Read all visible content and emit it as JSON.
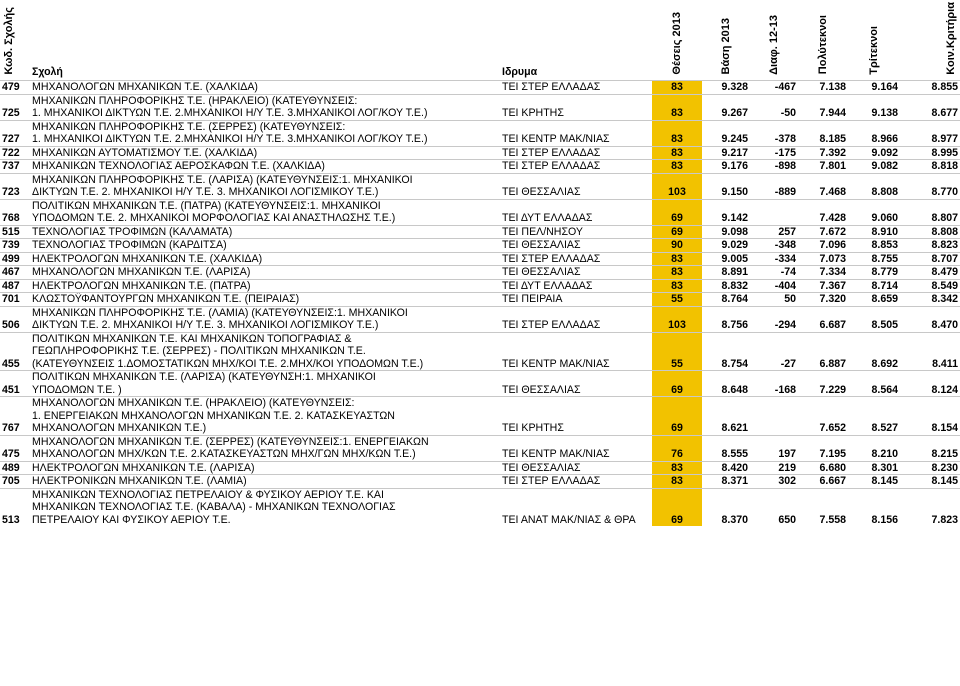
{
  "headers": {
    "code": "Κωδ. Σχολής",
    "school": "Σχολή",
    "institution": "Ιδρυμα",
    "positions": "Θέσεις 2013",
    "base": "Βάση 2013",
    "diff": "Διαφ. 12-13",
    "polyteknoi": "Πολύτεκνοι",
    "triteknoi": "Τρίτεκνοι",
    "koinkrit": "Κοιν.Κριτήρια"
  },
  "rows": [
    {
      "code": "479",
      "school": "ΜΗΧΑΝΟΛΟΓΩΝ ΜΗΧΑΝΙΚΩΝ Τ.Ε. (ΧΑΛΚΙΔΑ)",
      "institution": "ΤΕΙ ΣΤΕΡ ΕΛΛΑΔΑΣ",
      "positions": "83",
      "base": "9.328",
      "diff": "-467",
      "poly": "7.138",
      "tri": "9.164",
      "koin": "8.855"
    },
    {
      "code": "725",
      "school": "ΜΗΧΑΝΙΚΩΝ ΠΛΗΡΟΦΟΡΙΚΗΣ Τ.Ε. (ΗΡΑΚΛΕΙΟ) (ΚΑΤΕΥΘΥΝΣΕΙΣ:\n1. ΜΗΧΑΝΙΚΟΙ ΔΙΚΤΥΩΝ Τ.Ε. 2.ΜΗΧΑΝΙΚΟΙ Η/Υ Τ.Ε. 3.ΜΗΧΑΝΙΚΟΙ ΛΟΓ/ΚΟΥ Τ.Ε.)",
      "institution": "ΤΕΙ ΚΡΗΤΗΣ",
      "positions": "83",
      "base": "9.267",
      "diff": "-50",
      "poly": "7.944",
      "tri": "9.138",
      "koin": "8.677"
    },
    {
      "code": "727",
      "school": "ΜΗΧΑΝΙΚΩΝ ΠΛΗΡΟΦΟΡΙΚΗΣ Τ.Ε. (ΣΕΡΡΕΣ) (ΚΑΤΕΥΘΥΝΣΕΙΣ:\n1. ΜΗΧΑΝΙΚΟΙ ΔΙΚΤΥΩΝ Τ.Ε. 2.ΜΗΧΑΝΙΚΟΙ Η/Υ Τ.Ε. 3.ΜΗΧΑΝΙΚΟΙ ΛΟΓ/ΚΟΥ Τ.Ε.)",
      "institution": "ΤΕΙ ΚΕΝΤΡ ΜΑΚ/ΝΙΑΣ",
      "positions": "83",
      "base": "9.245",
      "diff": "-378",
      "poly": "8.185",
      "tri": "8.966",
      "koin": "8.977"
    },
    {
      "code": "722",
      "school": "ΜΗΧΑΝΙΚΩΝ ΑΥΤΟΜΑΤΙΣΜΟΥ Τ.Ε. (ΧΑΛΚΙΔΑ)",
      "institution": "ΤΕΙ ΣΤΕΡ ΕΛΛΑΔΑΣ",
      "positions": "83",
      "base": "9.217",
      "diff": "-175",
      "poly": "7.392",
      "tri": "9.092",
      "koin": "8.995"
    },
    {
      "code": "737",
      "school": "ΜΗΧΑΝΙΚΩΝ ΤΕΧΝΟΛΟΓΙΑΣ ΑΕΡΟΣΚΑΦΩΝ Τ.Ε. (ΧΑΛΚΙΔΑ)",
      "institution": "ΤΕΙ ΣΤΕΡ ΕΛΛΑΔΑΣ",
      "positions": "83",
      "base": "9.176",
      "diff": "-898",
      "poly": "7.801",
      "tri": "9.082",
      "koin": "8.818"
    },
    {
      "code": "723",
      "school": "ΜΗΧΑΝΙΚΩΝ ΠΛΗΡΟΦΟΡΙΚΗΣ Τ.Ε. (ΛΑΡΙΣΑ) (ΚΑΤΕΥΘΥΝΣΕΙΣ:1. ΜΗΧΑΝΙΚΟΙ\nΔΙΚΤΥΩΝ Τ.Ε. 2. ΜΗΧΑΝΙΚΟΙ Η/Υ Τ.Ε. 3. ΜΗΧΑΝΙΚΟΙ ΛΟΓΙΣΜΙΚΟΥ Τ.Ε.)",
      "institution": "ΤΕΙ ΘΕΣΣΑΛΙΑΣ",
      "positions": "103",
      "base": "9.150",
      "diff": "-889",
      "poly": "7.468",
      "tri": "8.808",
      "koin": "8.770"
    },
    {
      "code": "768",
      "school": "ΠΟΛΙΤΙΚΩΝ ΜΗΧΑΝΙΚΩΝ Τ.Ε. (ΠΑΤΡΑ) (ΚΑΤΕΥΘΥΝΣΕΙΣ:1. ΜΗΧΑΝΙΚΟΙ\nΥΠΟΔΟΜΩΝ Τ.Ε. 2. ΜΗΧΑΝΙΚΟΙ ΜΟΡΦΟΛΟΓΙΑΣ ΚΑΙ ΑΝΑΣΤΗΛΩΣΗΣ Τ.Ε.)",
      "institution": "ΤΕΙ ΔΥΤ ΕΛΛΑΔΑΣ",
      "positions": "69",
      "base": "9.142",
      "diff": "",
      "poly": "7.428",
      "tri": "9.060",
      "koin": "8.807"
    },
    {
      "code": "515",
      "school": "ΤΕΧΝΟΛΟΓΙΑΣ ΤΡΟΦΙΜΩΝ (ΚΑΛΑΜΑΤΑ)",
      "institution": "ΤΕΙ ΠΕΛ/ΝΗΣΟΥ",
      "positions": "69",
      "base": "9.098",
      "diff": "257",
      "poly": "7.672",
      "tri": "8.910",
      "koin": "8.808"
    },
    {
      "code": "739",
      "school": "ΤΕΧΝΟΛΟΓΙΑΣ ΤΡΟΦΙΜΩΝ (ΚΑΡΔΙΤΣΑ)",
      "institution": "ΤΕΙ ΘΕΣΣΑΛΙΑΣ",
      "positions": "90",
      "base": "9.029",
      "diff": "-348",
      "poly": "7.096",
      "tri": "8.853",
      "koin": "8.823"
    },
    {
      "code": "499",
      "school": "ΗΛΕΚΤΡΟΛΟΓΩΝ ΜΗΧΑΝΙΚΩΝ Τ.Ε. (ΧΑΛΚΙΔΑ)",
      "institution": "ΤΕΙ ΣΤΕΡ ΕΛΛΑΔΑΣ",
      "positions": "83",
      "base": "9.005",
      "diff": "-334",
      "poly": "7.073",
      "tri": "8.755",
      "koin": "8.707"
    },
    {
      "code": "467",
      "school": "ΜΗΧΑΝΟΛΟΓΩΝ ΜΗΧΑΝΙΚΩΝ Τ.Ε. (ΛΑΡΙΣΑ)",
      "institution": "ΤΕΙ ΘΕΣΣΑΛΙΑΣ",
      "positions": "83",
      "base": "8.891",
      "diff": "-74",
      "poly": "7.334",
      "tri": "8.779",
      "koin": "8.479"
    },
    {
      "code": "487",
      "school": "ΗΛΕΚΤΡΟΛΟΓΩΝ ΜΗΧΑΝΙΚΩΝ Τ.Ε. (ΠΑΤΡΑ)",
      "institution": "ΤΕΙ ΔΥΤ ΕΛΛΑΔΑΣ",
      "positions": "83",
      "base": "8.832",
      "diff": "-404",
      "poly": "7.367",
      "tri": "8.714",
      "koin": "8.549"
    },
    {
      "code": "701",
      "school": "ΚΛΩΣΤΟΫΦΑΝΤΟΥΡΓΩΝ ΜΗΧΑΝΙΚΩΝ Τ.Ε. (ΠΕΙΡΑΙΑΣ)",
      "institution": "ΤΕΙ ΠΕΙΡΑΙΑ",
      "positions": "55",
      "base": "8.764",
      "diff": "50",
      "poly": "7.320",
      "tri": "8.659",
      "koin": "8.342"
    },
    {
      "code": "506",
      "school": "ΜΗΧΑΝΙΚΩΝ ΠΛΗΡΟΦΟΡΙΚΗΣ Τ.Ε. (ΛΑΜΙΑ) (ΚΑΤΕΥΘΥΝΣΕΙΣ:1. ΜΗΧΑΝΙΚΟΙ\nΔΙΚΤΥΩΝ Τ.Ε. 2. ΜΗΧΑΝΙΚΟΙ Η/Υ Τ.Ε. 3. ΜΗΧΑΝΙΚΟΙ ΛΟΓΙΣΜΙΚΟΥ Τ.Ε.)",
      "institution": "ΤΕΙ ΣΤΕΡ ΕΛΛΑΔΑΣ",
      "positions": "103",
      "base": "8.756",
      "diff": "-294",
      "poly": "6.687",
      "tri": "8.505",
      "koin": "8.470"
    },
    {
      "code": "455",
      "school": "ΠΟΛΙΤΙΚΩΝ ΜΗΧΑΝΙΚΩΝ Τ.Ε. ΚΑΙ ΜΗΧΑΝΙΚΩΝ ΤΟΠΟΓΡΑΦΙΑΣ &\nΓΕΩΠΛΗΡΟΦΟΡΙΚΗΣ Τ.Ε. (ΣΕΡΡΕΣ) - ΠΟΛΙΤΙΚΩΝ ΜΗΧΑΝΙΚΩΝ Τ.Ε.\n(ΚΑΤΕΥΘΥΝΣΕΙΣ 1.ΔΟΜΟΣΤΑΤΙΚΩΝ ΜΗΧ/ΚΟΙ Τ.Ε. 2.ΜΗΧ/ΚΟΙ ΥΠΟΔΟΜΩΝ Τ.Ε.)",
      "institution": "ΤΕΙ ΚΕΝΤΡ ΜΑΚ/ΝΙΑΣ",
      "positions": "55",
      "base": "8.754",
      "diff": "-27",
      "poly": "6.887",
      "tri": "8.692",
      "koin": "8.411"
    },
    {
      "code": "451",
      "school": "ΠΟΛΙΤΙΚΩΝ ΜΗΧΑΝΙΚΩΝ Τ.Ε. (ΛΑΡΙΣΑ) (ΚΑΤΕΥΘΥΝΣΗ:1. ΜΗΧΑΝΙΚΟΙ\nΥΠΟΔΟΜΩΝ Τ.Ε. )",
      "institution": "ΤΕΙ ΘΕΣΣΑΛΙΑΣ",
      "positions": "69",
      "base": "8.648",
      "diff": "-168",
      "poly": "7.229",
      "tri": "8.564",
      "koin": "8.124"
    },
    {
      "code": "767",
      "school": "ΜΗΧΑΝΟΛΟΓΩΝ ΜΗΧΑΝΙΚΩΝ Τ.Ε. (ΗΡΑΚΛΕΙΟ) (ΚΑΤΕΥΘΥΝΣΕΙΣ:\n1. ΕΝΕΡΓΕΙΑΚΩΝ ΜΗΧΑΝΟΛΟΓΩΝ ΜΗΧΑΝΙΚΩΝ Τ.Ε. 2. ΚΑΤΑΣΚΕΥΑΣΤΩΝ\nΜΗΧΑΝΟΛΟΓΩΝ ΜΗΧΑΝΙΚΩΝ Τ.Ε.)",
      "institution": "ΤΕΙ ΚΡΗΤΗΣ",
      "positions": "69",
      "base": "8.621",
      "diff": "",
      "poly": "7.652",
      "tri": "8.527",
      "koin": "8.154"
    },
    {
      "code": "475",
      "school": "ΜΗΧΑΝΟΛΟΓΩΝ ΜΗΧΑΝΙΚΩΝ Τ.Ε. (ΣΕΡΡΕΣ) (ΚΑΤΕΥΘΥΝΣΕΙΣ:1. ΕΝΕΡΓΕΙΑΚΩΝ\nΜΗΧΑΝΟΛΟΓΩΝ ΜΗΧ/ΚΩΝ Τ.Ε. 2.ΚΑΤΑΣΚΕΥΑΣΤΩΝ ΜΗΧ/ΓΩΝ ΜΗΧ/ΚΩΝ Τ.Ε.)",
      "institution": "ΤΕΙ ΚΕΝΤΡ ΜΑΚ/ΝΙΑΣ",
      "positions": "76",
      "base": "8.555",
      "diff": "197",
      "poly": "7.195",
      "tri": "8.210",
      "koin": "8.215"
    },
    {
      "code": "489",
      "school": "ΗΛΕΚΤΡΟΛΟΓΩΝ ΜΗΧΑΝΙΚΩΝ Τ.Ε. (ΛΑΡΙΣΑ)",
      "institution": "ΤΕΙ ΘΕΣΣΑΛΙΑΣ",
      "positions": "83",
      "base": "8.420",
      "diff": "219",
      "poly": "6.680",
      "tri": "8.301",
      "koin": "8.230"
    },
    {
      "code": "705",
      "school": "ΗΛΕΚΤΡΟΝΙΚΩΝ ΜΗΧΑΝΙΚΩΝ Τ.Ε. (ΛΑΜΙΑ)",
      "institution": "ΤΕΙ ΣΤΕΡ ΕΛΛΑΔΑΣ",
      "positions": "83",
      "base": "8.371",
      "diff": "302",
      "poly": "6.667",
      "tri": "8.145",
      "koin": "8.145"
    },
    {
      "code": "513",
      "school": "ΜΗΧΑΝΙΚΩΝ ΤΕΧΝΟΛΟΓΙΑΣ ΠΕΤΡΕΛΑΙΟΥ & ΦΥΣΙΚΟΥ ΑΕΡΙΟΥ Τ.Ε. ΚΑΙ\nΜΗΧΑΝΙΚΩΝ ΤΕΧΝΟΛΟΓΙΑΣ Τ.Ε. (ΚΑΒΑΛΑ) - ΜΗΧΑΝΙΚΩΝ ΤΕΧΝΟΛΟΓΙΑΣ\nΠΕΤΡΕΛΑΙΟΥ ΚΑΙ ΦΥΣΙΚΟΥ ΑΕΡΙΟΥ Τ.Ε.",
      "institution": "ΤΕΙ ΑΝΑΤ ΜΑΚ/ΝΙΑΣ & ΘΡΑ",
      "positions": "69",
      "base": "8.370",
      "diff": "650",
      "poly": "7.558",
      "tri": "8.156",
      "koin": "7.823"
    }
  ]
}
